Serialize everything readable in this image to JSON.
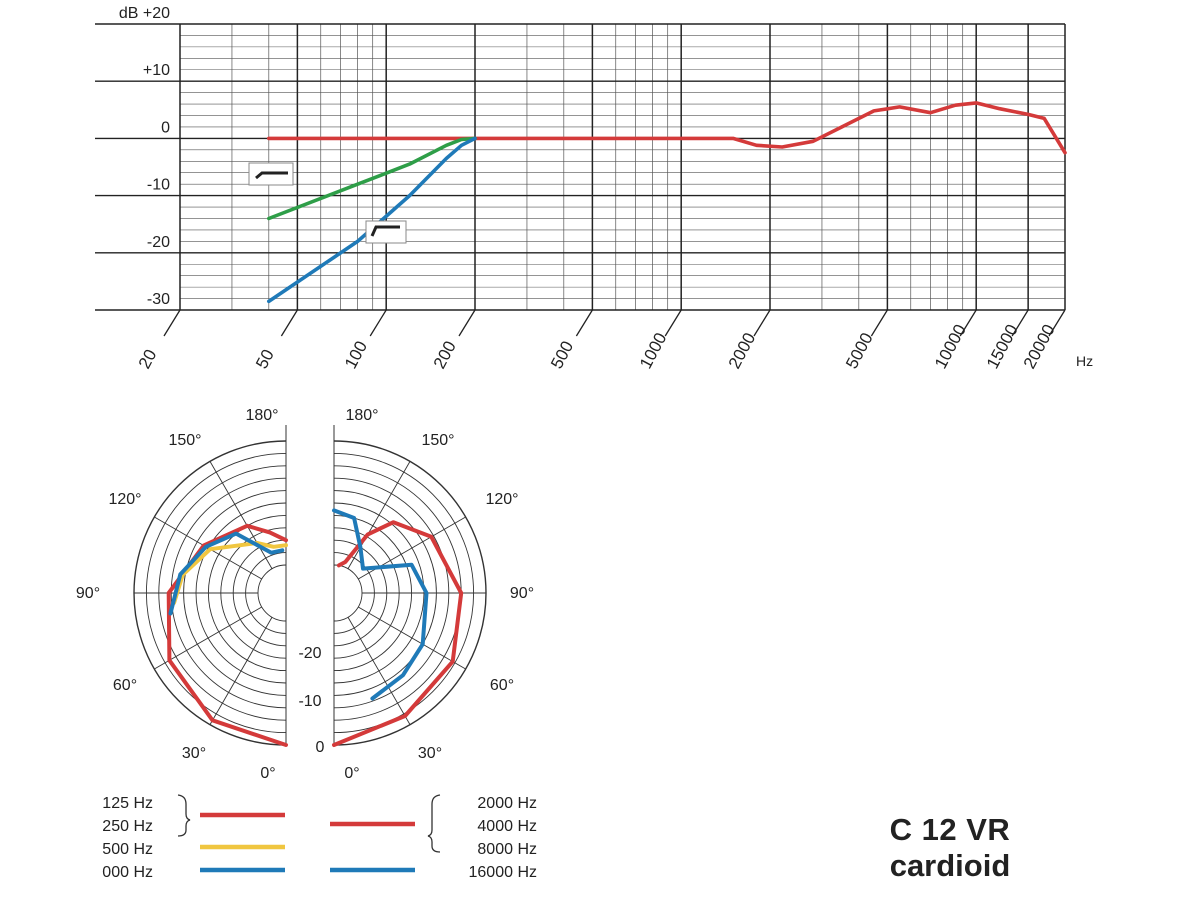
{
  "chart_data": [
    {
      "type": "line",
      "title": "",
      "xlabel": "Hz",
      "ylabel": "dB",
      "x_scale": "log",
      "xlim": [
        20,
        20000
      ],
      "ylim": [
        -30,
        20
      ],
      "y_ticks": [
        {
          "value": 20,
          "label": "dB  +20"
        },
        {
          "value": 10,
          "label": "+10"
        },
        {
          "value": 0,
          "label": "0"
        },
        {
          "value": -10,
          "label": "-10"
        },
        {
          "value": -20,
          "label": "-20"
        },
        {
          "value": -30,
          "label": "-30"
        }
      ],
      "x_ticks": [
        {
          "value": 20,
          "label": "20"
        },
        {
          "value": 50,
          "label": "50"
        },
        {
          "value": 100,
          "label": "100"
        },
        {
          "value": 200,
          "label": "200"
        },
        {
          "value": 500,
          "label": "500"
        },
        {
          "value": 1000,
          "label": "1000"
        },
        {
          "value": 2000,
          "label": "2000"
        },
        {
          "value": 5000,
          "label": "5000"
        },
        {
          "value": 10000,
          "label": "10000"
        },
        {
          "value": 15000,
          "label": "15000"
        },
        {
          "value": 20000,
          "label": "20000"
        }
      ],
      "grid": true,
      "series": [
        {
          "color": "#d43a3a",
          "points": [
            [
              40,
              0
            ],
            [
              800,
              0
            ],
            [
              1500,
              0
            ],
            [
              1800,
              -1.2
            ],
            [
              2200,
              -1.5
            ],
            [
              2800,
              -0.5
            ],
            [
              3500,
              2
            ],
            [
              4500,
              4.8
            ],
            [
              5500,
              5.5
            ],
            [
              7000,
              4.5
            ],
            [
              8500,
              5.8
            ],
            [
              10000,
              6.2
            ],
            [
              12000,
              5.2
            ],
            [
              15000,
              4.2
            ],
            [
              17000,
              3.5
            ],
            [
              20000,
              -2.5
            ]
          ]
        },
        {
          "color": "#2e9e48",
          "points": [
            [
              40,
              -14
            ],
            [
              80,
              -8
            ],
            [
              120,
              -4.5
            ],
            [
              160,
              -1.2
            ],
            [
              180,
              -0.2
            ],
            [
              200,
              0
            ]
          ]
        },
        {
          "color": "#1f7ab8",
          "points": [
            [
              40,
              -28.5
            ],
            [
              80,
              -18
            ],
            [
              120,
              -10
            ],
            [
              160,
              -3.5
            ],
            [
              180,
              -1.2
            ],
            [
              200,
              0
            ]
          ]
        }
      ]
    },
    {
      "type": "polar",
      "angle_labels": [
        "180°",
        "150°",
        "120°",
        "90°",
        "60°",
        "30°",
        "0°"
      ],
      "radial_labels": [
        "-20",
        "-10",
        "0"
      ],
      "series_left": [
        {
          "color": "#d43a3a",
          "points": [
            [
              0,
              0
            ],
            [
              30,
              -1
            ],
            [
              60,
              -3.5
            ],
            [
              90,
              -7
            ],
            [
              120,
              -11.5
            ],
            [
              150,
              -15
            ],
            [
              165,
              -18
            ],
            [
              180,
              -20
            ]
          ]
        },
        {
          "color": "#f0c640",
          "points": [
            [
              85,
              -8
            ],
            [
              100,
              -9.5
            ],
            [
              120,
              -13
            ],
            [
              150,
              -19
            ],
            [
              165,
              -21
            ],
            [
              180,
              -21
            ]
          ]
        },
        {
          "color": "#1f7ab8",
          "points": [
            [
              80,
              -7
            ],
            [
              100,
              -9
            ],
            [
              120,
              -12
            ],
            [
              140,
              -15
            ],
            [
              160,
              -22
            ],
            [
              175,
              -22
            ]
          ]
        }
      ],
      "series_right": [
        {
          "color": "#d43a3a",
          "points": [
            [
              0,
              0
            ],
            [
              30,
              -2
            ],
            [
              60,
              -3
            ],
            [
              90,
              -5
            ],
            [
              120,
              -8
            ],
            [
              140,
              -12
            ],
            [
              150,
              -17
            ],
            [
              160,
              -24
            ],
            [
              170,
              -25
            ]
          ]
        },
        {
          "color": "#1f7ab8",
          "points": [
            [
              20,
              -8
            ],
            [
              40,
              -9
            ],
            [
              60,
              -10
            ],
            [
              90,
              -12
            ],
            [
              110,
              -14
            ],
            [
              130,
              -23
            ],
            [
              150,
              -20
            ],
            [
              165,
              -15
            ],
            [
              180,
              -14
            ]
          ]
        }
      ]
    }
  ],
  "legend": {
    "left_labels": [
      "125 Hz",
      "250 Hz",
      "500 Hz",
      "000 Hz"
    ],
    "right_labels": [
      "2000 Hz",
      "4000 Hz",
      "8000 Hz",
      "16000 Hz"
    ],
    "line_colors": [
      "#d43a3a",
      "#f0c640",
      "#1f7ab8"
    ]
  },
  "model": {
    "name": "C 12 VR",
    "pattern": "cardioid"
  }
}
